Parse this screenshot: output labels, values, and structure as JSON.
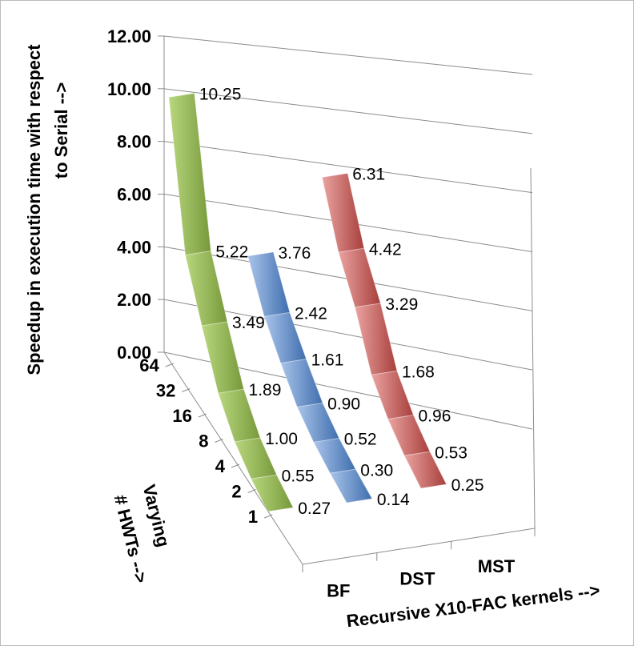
{
  "chart_data": {
    "type": "3d-line-ribbon",
    "title": "",
    "ylabel": "Speedup in execution time with respect to Serial -->",
    "ylabel_lines": [
      "Speedup in execution time with respect",
      "to Serial -->"
    ],
    "xlabel": "Recursive X10-FAC kernels -->",
    "zlabel": "Varying # HWTs -->",
    "zlabel_lines": [
      "Varying",
      "# HWTs -->"
    ],
    "ylim": [
      0,
      12
    ],
    "y_ticks": [
      "0.00",
      "2.00",
      "4.00",
      "6.00",
      "8.00",
      "10.00",
      "12.00"
    ],
    "depth_categories": [
      "1",
      "2",
      "4",
      "8",
      "16",
      "32",
      "64"
    ],
    "series": [
      {
        "name": "BF",
        "color": "#9bbb59",
        "values": [
          0.27,
          0.55,
          1.0,
          1.89,
          3.49,
          5.22,
          10.25
        ],
        "labels": [
          "0.27",
          "0.55",
          "1.00",
          "1.89",
          "3.49",
          "5.22",
          "10.25"
        ]
      },
      {
        "name": "DST",
        "color": "#4f81bd",
        "values": [
          0.14,
          0.3,
          0.52,
          0.9,
          1.61,
          2.42,
          3.76
        ],
        "labels": [
          "0.14",
          "0.30",
          "0.52",
          "0.90",
          "1.61",
          "2.42",
          "3.76"
        ]
      },
      {
        "name": "MST",
        "color": "#c0504d",
        "values": [
          0.25,
          0.53,
          0.96,
          1.68,
          3.29,
          4.42,
          6.31
        ],
        "labels": [
          "0.25",
          "0.53",
          "0.96",
          "1.68",
          "3.29",
          "4.42",
          "6.31"
        ]
      }
    ]
  }
}
